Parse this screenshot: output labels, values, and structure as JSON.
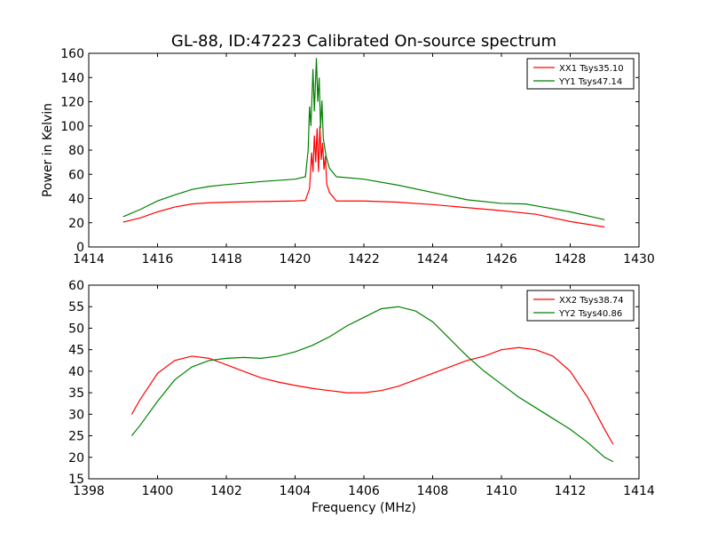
{
  "title": "GL-88, ID:47223 Calibrated On-source spectrum",
  "colors": {
    "red": "#ff0000",
    "green": "#008000"
  },
  "chart_data": [
    {
      "type": "line",
      "ylabel": "Power in Kelvin",
      "xlabel": "",
      "xlim": [
        1414,
        1430
      ],
      "ylim": [
        0,
        160
      ],
      "xticks": [
        1414,
        1416,
        1418,
        1420,
        1422,
        1424,
        1426,
        1428,
        1430
      ],
      "yticks": [
        0,
        20,
        40,
        60,
        80,
        100,
        120,
        140,
        160
      ],
      "legend_position": "top-right",
      "series": [
        {
          "name": "XX1 Tsys35.10",
          "color": "#ff0000",
          "points": [
            [
              1415.0,
              20.5
            ],
            [
              1415.5,
              24
            ],
            [
              1416.0,
              29
            ],
            [
              1416.5,
              33
            ],
            [
              1417.0,
              35.5
            ],
            [
              1417.5,
              36.5
            ],
            [
              1418.0,
              37
            ],
            [
              1419.0,
              37.5
            ],
            [
              1420.0,
              38
            ],
            [
              1420.3,
              38.5
            ],
            [
              1420.42,
              48
            ],
            [
              1420.48,
              78
            ],
            [
              1420.52,
              62
            ],
            [
              1420.56,
              92
            ],
            [
              1420.6,
              70
            ],
            [
              1420.64,
              98
            ],
            [
              1420.68,
              62
            ],
            [
              1420.72,
              100
            ],
            [
              1420.76,
              72
            ],
            [
              1420.8,
              86
            ],
            [
              1420.84,
              64
            ],
            [
              1420.88,
              75
            ],
            [
              1420.92,
              52
            ],
            [
              1421.0,
              45
            ],
            [
              1421.2,
              38
            ],
            [
              1422.0,
              38
            ],
            [
              1423.0,
              37
            ],
            [
              1424.0,
              35
            ],
            [
              1425.0,
              32.5
            ],
            [
              1426.0,
              30
            ],
            [
              1427.0,
              27
            ],
            [
              1428.0,
              21
            ],
            [
              1429.0,
              16.5
            ]
          ]
        },
        {
          "name": "YY1 Tsys47.14",
          "color": "#008000",
          "points": [
            [
              1415.0,
              25
            ],
            [
              1415.5,
              31
            ],
            [
              1416.0,
              38
            ],
            [
              1416.5,
              43
            ],
            [
              1417.0,
              47.5
            ],
            [
              1417.5,
              50
            ],
            [
              1418.0,
              51.5
            ],
            [
              1419.0,
              54
            ],
            [
              1420.0,
              56
            ],
            [
              1420.3,
              58
            ],
            [
              1420.38,
              80
            ],
            [
              1420.42,
              116
            ],
            [
              1420.46,
              100
            ],
            [
              1420.52,
              147
            ],
            [
              1420.56,
              112
            ],
            [
              1420.62,
              156
            ],
            [
              1420.66,
              120
            ],
            [
              1420.7,
              140
            ],
            [
              1420.74,
              98
            ],
            [
              1420.78,
              121
            ],
            [
              1420.82,
              90
            ],
            [
              1420.9,
              75
            ],
            [
              1421.0,
              65
            ],
            [
              1421.2,
              58
            ],
            [
              1422.0,
              56
            ],
            [
              1423.0,
              51
            ],
            [
              1424.0,
              45
            ],
            [
              1425.0,
              39
            ],
            [
              1426.0,
              36
            ],
            [
              1426.7,
              35.5
            ],
            [
              1427.0,
              34
            ],
            [
              1428.0,
              29
            ],
            [
              1429.0,
              22.5
            ]
          ]
        }
      ]
    },
    {
      "type": "line",
      "ylabel": "",
      "xlabel": "Frequency (MHz)",
      "xlim": [
        1398,
        1414
      ],
      "ylim": [
        15,
        60
      ],
      "xticks": [
        1398,
        1400,
        1402,
        1404,
        1406,
        1408,
        1410,
        1412,
        1414
      ],
      "yticks": [
        15,
        20,
        25,
        30,
        35,
        40,
        45,
        50,
        55,
        60
      ],
      "legend_position": "top-right",
      "series": [
        {
          "name": "XX2 Tsys38.74",
          "color": "#ff0000",
          "points": [
            [
              1399.25,
              30
            ],
            [
              1399.5,
              33.5
            ],
            [
              1400.0,
              39.5
            ],
            [
              1400.5,
              42.5
            ],
            [
              1401.0,
              43.5
            ],
            [
              1401.5,
              43
            ],
            [
              1402.0,
              41.5
            ],
            [
              1402.5,
              40
            ],
            [
              1403.0,
              38.5
            ],
            [
              1403.5,
              37.5
            ],
            [
              1404.0,
              36.7
            ],
            [
              1404.5,
              36
            ],
            [
              1405.0,
              35.5
            ],
            [
              1405.5,
              35
            ],
            [
              1406.0,
              35
            ],
            [
              1406.5,
              35.5
            ],
            [
              1407.0,
              36.5
            ],
            [
              1407.5,
              38
            ],
            [
              1408.0,
              39.5
            ],
            [
              1408.5,
              41
            ],
            [
              1409.0,
              42.5
            ],
            [
              1409.5,
              43.5
            ],
            [
              1410.0,
              45
            ],
            [
              1410.5,
              45.5
            ],
            [
              1411.0,
              45
            ],
            [
              1411.5,
              43.5
            ],
            [
              1412.0,
              40
            ],
            [
              1412.5,
              34
            ],
            [
              1413.0,
              26.5
            ],
            [
              1413.25,
              23
            ]
          ]
        },
        {
          "name": "YY2 Tsys40.86",
          "color": "#008000",
          "points": [
            [
              1399.25,
              25
            ],
            [
              1399.5,
              27.5
            ],
            [
              1400.0,
              33
            ],
            [
              1400.5,
              38
            ],
            [
              1401.0,
              41
            ],
            [
              1401.5,
              42.5
            ],
            [
              1402.0,
              43
            ],
            [
              1402.5,
              43.2
            ],
            [
              1403.0,
              43
            ],
            [
              1403.5,
              43.5
            ],
            [
              1404.0,
              44.5
            ],
            [
              1404.5,
              46
            ],
            [
              1405.0,
              48
            ],
            [
              1405.5,
              50.5
            ],
            [
              1406.0,
              52.5
            ],
            [
              1406.5,
              54.5
            ],
            [
              1407.0,
              55
            ],
            [
              1407.5,
              54
            ],
            [
              1408.0,
              51.5
            ],
            [
              1408.5,
              47.5
            ],
            [
              1409.0,
              43.5
            ],
            [
              1409.5,
              40
            ],
            [
              1410.0,
              37
            ],
            [
              1410.5,
              34
            ],
            [
              1411.0,
              31.5
            ],
            [
              1411.5,
              29
            ],
            [
              1412.0,
              26.5
            ],
            [
              1412.5,
              23.5
            ],
            [
              1413.0,
              20
            ],
            [
              1413.25,
              19
            ]
          ]
        }
      ]
    }
  ]
}
